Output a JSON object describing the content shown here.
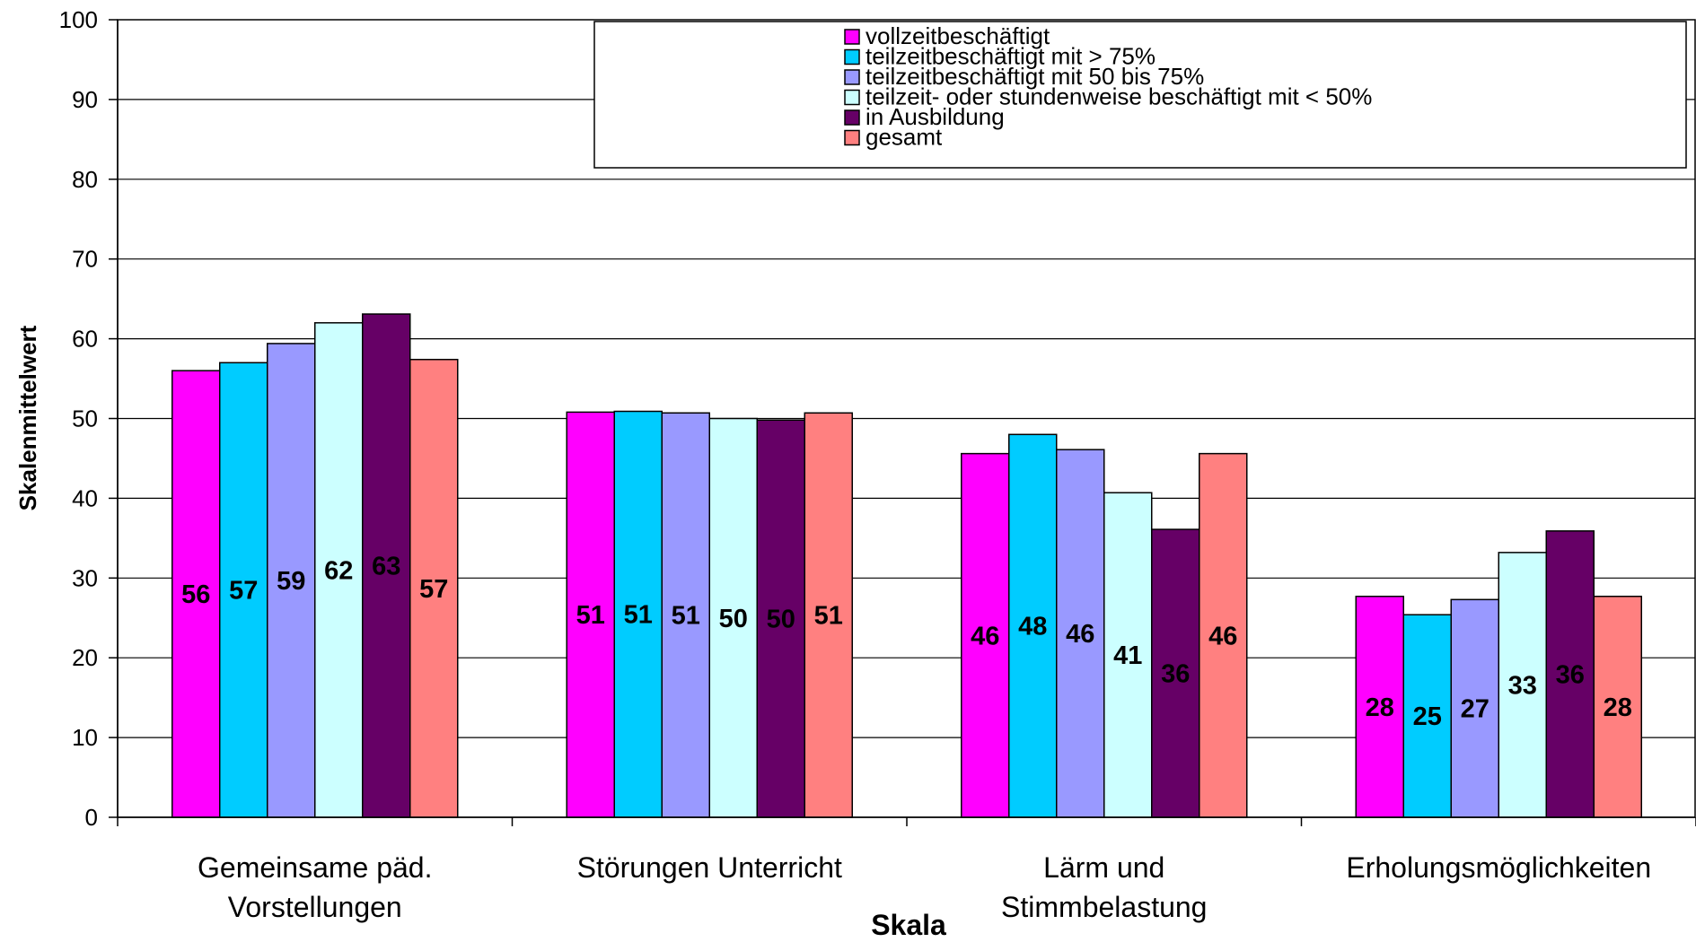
{
  "chart_data": {
    "type": "bar",
    "title": "",
    "xlabel": "Skala",
    "ylabel": "Skalenmittelwert",
    "ylim": [
      0,
      100
    ],
    "yticks": [
      0,
      10,
      20,
      30,
      40,
      50,
      60,
      70,
      80,
      90,
      100
    ],
    "grid": true,
    "legend_position": "top-right",
    "categories": [
      [
        "Gemeinsame päd.",
        "Vorstellungen"
      ],
      [
        "Störungen Unterricht"
      ],
      [
        "Lärm und",
        "Stimmbelastung"
      ],
      [
        "Erholungsmöglichkeiten"
      ]
    ],
    "series": [
      {
        "name": "vollzeitbeschäftigt",
        "color": "#FF00FF",
        "values": [
          56,
          50.8,
          45.6,
          27.7
        ],
        "labels": [
          "56",
          "51",
          "46",
          "28"
        ]
      },
      {
        "name": "teilzeitbeschäftigt mit > 75%",
        "color": "#00CCFF",
        "values": [
          57,
          50.9,
          48,
          25.4
        ],
        "labels": [
          "57",
          "51",
          "48",
          "25"
        ]
      },
      {
        "name": "teilzeitbeschäftigt mit  50 bis 75%",
        "color": "#9999FF",
        "values": [
          59.4,
          50.7,
          46.1,
          27.3
        ],
        "labels": [
          "59",
          "51",
          "46",
          "27"
        ]
      },
      {
        "name": "teilzeit- oder stundenweise beschäftigt mit < 50%",
        "color": "#CCFFFF",
        "values": [
          62,
          50,
          40.7,
          33.2
        ],
        "labels": [
          "62",
          "50",
          "41",
          "33"
        ]
      },
      {
        "name": "in Ausbildung",
        "color": "#660066",
        "values": [
          63.1,
          49.8,
          36.1,
          35.9
        ],
        "labels": [
          "63",
          "50",
          "36",
          "36"
        ]
      },
      {
        "name": "gesamt",
        "color": "#FF8080",
        "values": [
          57.4,
          50.7,
          45.6,
          27.7
        ],
        "labels": [
          "57",
          "51",
          "46",
          "28"
        ]
      }
    ]
  }
}
